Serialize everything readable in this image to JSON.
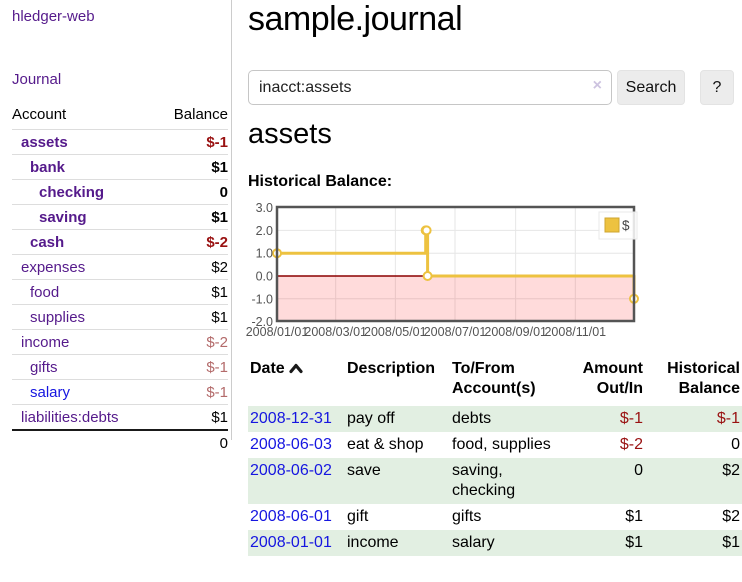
{
  "app": {
    "brand": "hledger-web",
    "nav_journal": "Journal"
  },
  "sidebar": {
    "header": {
      "account": "Account",
      "balance": "Balance"
    },
    "accounts": [
      {
        "name": "assets",
        "indent": 1,
        "balance": "$-1",
        "bold": true,
        "amount_class": "neg"
      },
      {
        "name": "bank",
        "indent": 2,
        "balance": "$1",
        "bold": true,
        "amount_class": ""
      },
      {
        "name": "checking",
        "indent": 3,
        "balance": "0",
        "bold": true,
        "amount_class": ""
      },
      {
        "name": "saving",
        "indent": 3,
        "balance": "$1",
        "bold": true,
        "amount_class": ""
      },
      {
        "name": "cash",
        "indent": 2,
        "balance": "$-2",
        "bold": true,
        "amount_class": "neg"
      },
      {
        "name": "expenses",
        "indent": 1,
        "balance": "$2",
        "bold": false,
        "amount_class": ""
      },
      {
        "name": "food",
        "indent": 2,
        "balance": "$1",
        "bold": false,
        "amount_class": ""
      },
      {
        "name": "supplies",
        "indent": 2,
        "balance": "$1",
        "bold": false,
        "amount_class": ""
      },
      {
        "name": "income",
        "indent": 1,
        "balance": "$-2",
        "bold": false,
        "amount_class": "negmuted"
      },
      {
        "name": "gifts",
        "indent": 2,
        "balance": "$-1",
        "bold": false,
        "amount_class": "negmuted"
      },
      {
        "name": "salary",
        "indent": 2,
        "balance": "$-1",
        "bold": false,
        "amount_class": "negmuted",
        "link_color": "blue"
      },
      {
        "name": "liabilities:debts",
        "indent": 1,
        "balance": "$1",
        "bold": false,
        "amount_class": ""
      }
    ],
    "total": "0"
  },
  "header": {
    "title": "sample.journal"
  },
  "search": {
    "value": "inacct:assets",
    "clear_icon": "×",
    "button": "Search",
    "help_button": "?"
  },
  "account_page": {
    "title": "assets",
    "chart_label": "Historical Balance:"
  },
  "chart_data": {
    "type": "line",
    "step": true,
    "title": "Historical Balance:",
    "series": [
      {
        "name": "$",
        "color": "#edc240",
        "points": [
          {
            "x": "2008/01/01",
            "y": 1
          },
          {
            "x": "2008/06/01",
            "y": 2
          },
          {
            "x": "2008/06/02",
            "y": 2
          },
          {
            "x": "2008/06/03",
            "y": 0
          },
          {
            "x": "2008/12/31",
            "y": -1
          }
        ]
      }
    ],
    "x_ticks": [
      "2008/01/01",
      "2008/03/01",
      "2008/05/01",
      "2008/07/01",
      "2008/09/01",
      "2008/11/01"
    ],
    "y_ticks": [
      3.0,
      2.0,
      1.0,
      0.0,
      -1.0,
      -2.0
    ],
    "ylim": [
      -2,
      3
    ],
    "x_range": [
      "2008/01/01",
      "2008/12/31"
    ],
    "legend": {
      "label": "$",
      "position": "top-right"
    },
    "grid": true,
    "negative_region_fill": "rgba(255,0,0,0.14)",
    "zero_line_color": "#8b0000",
    "border_color": "#545454"
  },
  "register": {
    "columns": [
      "Date",
      "Description",
      "To/From Account(s)",
      "Amount Out/In",
      "Historical Balance"
    ],
    "sort": {
      "column": "Date",
      "direction": "asc"
    },
    "rows": [
      {
        "date": "2008-12-31",
        "description": "pay off",
        "accounts": "debts",
        "amount": "$-1",
        "amount_class": "neg",
        "balance": "$-1",
        "balance_class": "neg"
      },
      {
        "date": "2008-06-03",
        "description": "eat & shop",
        "accounts": "food, supplies",
        "amount": "$-2",
        "amount_class": "neg",
        "balance": "0",
        "balance_class": ""
      },
      {
        "date": "2008-06-02",
        "description": "save",
        "accounts": "saving, checking",
        "amount": "0",
        "amount_class": "",
        "balance": "$2",
        "balance_class": ""
      },
      {
        "date": "2008-06-01",
        "description": "gift",
        "accounts": "gifts",
        "amount": "$1",
        "amount_class": "",
        "balance": "$2",
        "balance_class": ""
      },
      {
        "date": "2008-01-01",
        "description": "income",
        "accounts": "salary",
        "amount": "$1",
        "amount_class": "",
        "balance": "$1",
        "balance_class": ""
      }
    ]
  }
}
